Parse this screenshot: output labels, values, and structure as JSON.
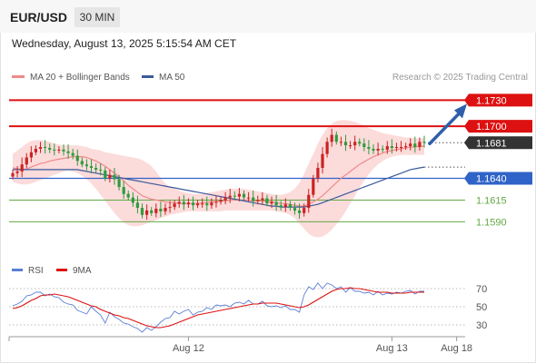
{
  "header": {
    "symbol": "EUR/USD",
    "timeframe": "30 MIN",
    "datetime": "Wednesday, August 13, 2025 5:15:54 AM CET"
  },
  "legend": {
    "ma20_label": "MA 20 + Bollinger Bands",
    "ma50_label": "MA 50",
    "credit": "Research © 2025 Trading Central"
  },
  "colors": {
    "up": "#cc2222",
    "down": "#2e9b3e",
    "ma20": "#f08a8a",
    "ma50": "#3a5a9c",
    "bollinger_fill": "#fbd5d5",
    "resistance": "#dd1111",
    "support_blue": "#2f63c7",
    "support_green": "#63a844",
    "last_tag": "#333333",
    "arrow": "#2f5faa",
    "rsi": "#5b7fd6",
    "rsi_ma": "#dd1111"
  },
  "chart_data": [
    {
      "type": "candlestick",
      "y_range": [
        1.1558,
        1.1745
      ],
      "x_labels": [
        {
          "bar": 38,
          "label": "Aug 12"
        },
        {
          "bar": 82,
          "label": "Aug 13"
        },
        {
          "bar": 96,
          "label": "Aug 18"
        }
      ],
      "price_levels": [
        {
          "value": 1.173,
          "label": "1.1730",
          "kind": "resistance"
        },
        {
          "value": 1.17,
          "label": "1.1700",
          "kind": "resistance"
        },
        {
          "value": 1.1681,
          "label": "1.1681",
          "kind": "last"
        },
        {
          "value": 1.164,
          "label": "1.1640",
          "kind": "pivot"
        },
        {
          "value": 1.1615,
          "label": "1.1615",
          "kind": "support"
        },
        {
          "value": 1.159,
          "label": "1.1590",
          "kind": "support"
        }
      ],
      "close": [
        1.1646,
        1.1648,
        1.1656,
        1.1664,
        1.167,
        1.1674,
        1.1676,
        1.1675,
        1.1673,
        1.1672,
        1.1673,
        1.1671,
        1.1669,
        1.1666,
        1.166,
        1.1656,
        1.1654,
        1.1652,
        1.165,
        1.1649,
        1.164,
        1.1644,
        1.1639,
        1.163,
        1.1622,
        1.1618,
        1.1612,
        1.1606,
        1.1598,
        1.1603,
        1.16,
        1.1605,
        1.1602,
        1.1606,
        1.1607,
        1.1611,
        1.1613,
        1.161,
        1.1612,
        1.1609,
        1.1611,
        1.1611,
        1.1609,
        1.1612,
        1.1613,
        1.1615,
        1.1618,
        1.162,
        1.1619,
        1.1622,
        1.1618,
        1.1618,
        1.1614,
        1.1615,
        1.1617,
        1.1611,
        1.1613,
        1.1609,
        1.1607,
        1.161,
        1.1606,
        1.1603,
        1.16,
        1.1606,
        1.1621,
        1.164,
        1.1652,
        1.1668,
        1.1682,
        1.169,
        1.1682,
        1.1682,
        1.1678,
        1.1678,
        1.1682,
        1.168,
        1.1676,
        1.1674,
        1.1672,
        1.1674,
        1.1673,
        1.1677,
        1.1675,
        1.1676,
        1.1676,
        1.1677,
        1.168,
        1.1676,
        1.1682,
        1.1681
      ],
      "ma20": [
        1.1652,
        1.1651,
        1.165,
        1.1651,
        1.1653,
        1.1655,
        1.1657,
        1.1658,
        1.166,
        1.1661,
        1.1662,
        1.1663,
        1.1664,
        1.1665,
        1.1665,
        1.1665,
        1.1664,
        1.1662,
        1.166,
        1.1657,
        1.1654,
        1.165,
        1.1646,
        1.1642,
        1.1637,
        1.1632,
        1.1628,
        1.1624,
        1.162,
        1.1618,
        1.1616,
        1.1615,
        1.1614,
        1.1613,
        1.1612,
        1.1612,
        1.1611,
        1.1611,
        1.1611,
        1.1611,
        1.1611,
        1.1612,
        1.1612,
        1.1613,
        1.1613,
        1.1614,
        1.1614,
        1.1615,
        1.1615,
        1.1615,
        1.1615,
        1.1615,
        1.1614,
        1.1614,
        1.1614,
        1.1613,
        1.1613,
        1.1612,
        1.1611,
        1.1611,
        1.161,
        1.1609,
        1.1608,
        1.1608,
        1.161,
        1.1613,
        1.1616,
        1.162,
        1.1625,
        1.163,
        1.1635,
        1.164,
        1.1644,
        1.1648,
        1.1652,
        1.1656,
        1.1659,
        1.1662,
        1.1665,
        1.1667,
        1.1669,
        1.1671,
        1.1672,
        1.1673,
        1.1674,
        1.1675,
        1.1676,
        1.1676,
        1.1677,
        1.1677
      ],
      "ma50": [
        1.165,
        1.165,
        1.165,
        1.165,
        1.165,
        1.165,
        1.165,
        1.165,
        1.165,
        1.165,
        1.165,
        1.165,
        1.165,
        1.165,
        1.165,
        1.1649,
        1.1648,
        1.1647,
        1.1646,
        1.1645,
        1.1644,
        1.1643,
        1.1642,
        1.1641,
        1.164,
        1.1639,
        1.1638,
        1.1637,
        1.1636,
        1.1635,
        1.1634,
        1.1633,
        1.1632,
        1.1631,
        1.163,
        1.1629,
        1.1628,
        1.1627,
        1.1626,
        1.1625,
        1.1624,
        1.1623,
        1.1622,
        1.1621,
        1.162,
        1.1619,
        1.1618,
        1.1617,
        1.1616,
        1.1615,
        1.1614,
        1.1613,
        1.1612,
        1.1611,
        1.161,
        1.1609,
        1.1608,
        1.1608,
        1.1607,
        1.1607,
        1.1607,
        1.1607,
        1.1607,
        1.1607,
        1.1608,
        1.1609,
        1.161,
        1.1612,
        1.1614,
        1.1616,
        1.1618,
        1.162,
        1.1622,
        1.1624,
        1.1626,
        1.1628,
        1.163,
        1.1632,
        1.1634,
        1.1636,
        1.1638,
        1.164,
        1.1642,
        1.1644,
        1.1646,
        1.1648,
        1.165,
        1.1651,
        1.1652,
        1.1653
      ],
      "bb_upper": [
        1.1668,
        1.1672,
        1.1676,
        1.168,
        1.1683,
        1.1684,
        1.1684,
        1.1683,
        1.1682,
        1.168,
        1.1679,
        1.1678,
        1.1678,
        1.1678,
        1.1678,
        1.1677,
        1.1676,
        1.1674,
        1.1673,
        1.1672,
        1.167,
        1.1669,
        1.1668,
        1.1667,
        1.1666,
        1.1665,
        1.1664,
        1.1663,
        1.1661,
        1.1658,
        1.1654,
        1.1648,
        1.164,
        1.1634,
        1.163,
        1.1628,
        1.1626,
        1.1624,
        1.1623,
        1.1622,
        1.1622,
        1.1622,
        1.1623,
        1.1624,
        1.1625,
        1.1626,
        1.1627,
        1.1628,
        1.1628,
        1.1628,
        1.1628,
        1.1627,
        1.1626,
        1.1625,
        1.1624,
        1.1623,
        1.1622,
        1.1621,
        1.1621,
        1.1622,
        1.1624,
        1.1628,
        1.1635,
        1.1645,
        1.1657,
        1.1668,
        1.168,
        1.169,
        1.1698,
        1.1703,
        1.1706,
        1.1707,
        1.1707,
        1.1706,
        1.1705,
        1.1703,
        1.1701,
        1.1698,
        1.1696,
        1.1694,
        1.1692,
        1.1691,
        1.169,
        1.1689,
        1.1688,
        1.1687,
        1.1687,
        1.1686,
        1.1686,
        1.1686
      ],
      "bb_lower": [
        1.1636,
        1.1634,
        1.1633,
        1.1633,
        1.1634,
        1.1636,
        1.1638,
        1.164,
        1.1642,
        1.1644,
        1.1646,
        1.1648,
        1.1649,
        1.1648,
        1.1646,
        1.1643,
        1.1639,
        1.1634,
        1.1628,
        1.1621,
        1.1614,
        1.1607,
        1.16,
        1.1594,
        1.1589,
        1.1586,
        1.1585,
        1.1585,
        1.1586,
        1.1588,
        1.159,
        1.1592,
        1.1594,
        1.1596,
        1.1598,
        1.1599,
        1.16,
        1.1601,
        1.1602,
        1.1602,
        1.1602,
        1.1602,
        1.1602,
        1.1602,
        1.1602,
        1.1602,
        1.1603,
        1.1603,
        1.1603,
        1.1603,
        1.1603,
        1.1603,
        1.1603,
        1.1603,
        1.1603,
        1.1603,
        1.1603,
        1.1602,
        1.1601,
        1.16,
        1.1598,
        1.1594,
        1.1588,
        1.1582,
        1.1576,
        1.1573,
        1.1572,
        1.1573,
        1.1576,
        1.1581,
        1.1587,
        1.1594,
        1.1602,
        1.1611,
        1.162,
        1.1629,
        1.1637,
        1.1645,
        1.1651,
        1.1656,
        1.166,
        1.1663,
        1.1665,
        1.1666,
        1.1667,
        1.1667,
        1.1667,
        1.1667,
        1.1667,
        1.1667
      ]
    },
    {
      "type": "line",
      "y_range": [
        18,
        78
      ],
      "y_ticks": [
        70,
        50,
        30
      ],
      "series": [
        {
          "name": "RSI",
          "values": [
            51,
            53,
            56,
            62,
            63,
            66,
            66,
            62,
            64,
            61,
            60,
            55,
            53,
            52,
            46,
            44,
            42,
            50,
            45,
            41,
            32,
            44,
            39,
            36,
            32,
            31,
            28,
            26,
            22,
            27,
            24,
            28,
            33,
            37,
            38,
            45,
            42,
            45,
            47,
            41,
            44,
            45,
            49,
            47,
            52,
            51,
            52,
            50,
            54,
            55,
            53,
            57,
            53,
            53,
            56,
            51,
            50,
            51,
            49,
            51,
            47,
            47,
            44,
            63,
            72,
            69,
            76,
            70,
            76,
            74,
            70,
            72,
            66,
            71,
            67,
            67,
            65,
            66,
            63,
            67,
            63,
            65,
            64,
            66,
            65,
            67,
            68,
            64,
            67,
            67
          ]
        },
        {
          "name": "9MA",
          "values": [
            48,
            49,
            51,
            54,
            57,
            59,
            62,
            63,
            63,
            64,
            63,
            62,
            61,
            59,
            57,
            55,
            53,
            51,
            50,
            47,
            45,
            43,
            41,
            40,
            38,
            37,
            35,
            33,
            31,
            29,
            28,
            27,
            27,
            28,
            29,
            31,
            33,
            35,
            37,
            39,
            41,
            42,
            43,
            44,
            45,
            46,
            47,
            48,
            49,
            50,
            51,
            52,
            53,
            53,
            54,
            54,
            54,
            54,
            53,
            52,
            51,
            50,
            49,
            50,
            52,
            55,
            58,
            61,
            64,
            67,
            69,
            70,
            70,
            71,
            70,
            70,
            69,
            68,
            67,
            66,
            66,
            66,
            65,
            65,
            65,
            65,
            66,
            66,
            66,
            66
          ]
        }
      ]
    }
  ]
}
